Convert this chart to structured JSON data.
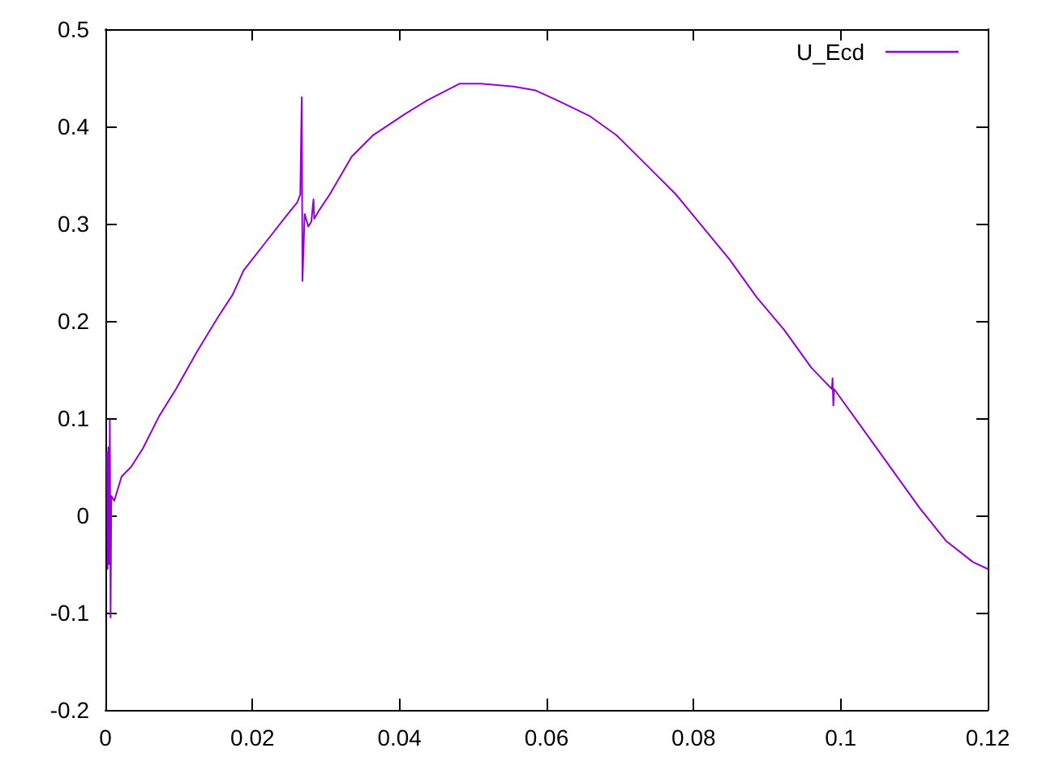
{
  "chart_data": {
    "type": "line",
    "x": [
      0.0002,
      0.0003,
      0.0004,
      0.0005,
      0.0006,
      0.0007,
      0.0008,
      0.0012,
      0.0022,
      0.0035,
      0.0051,
      0.0073,
      0.0096,
      0.0125,
      0.0154,
      0.0173,
      0.0188,
      0.0217,
      0.0246,
      0.0261,
      0.0265,
      0.0267,
      0.0268,
      0.0271,
      0.0276,
      0.028,
      0.0283,
      0.0284,
      0.029,
      0.0305,
      0.0335,
      0.0364,
      0.0408,
      0.0438,
      0.0482,
      0.0511,
      0.0555,
      0.0585,
      0.0614,
      0.0658,
      0.0695,
      0.0739,
      0.0776,
      0.0812,
      0.0849,
      0.0886,
      0.0923,
      0.096,
      0.0988,
      0.0989,
      0.099,
      0.0991,
      0.1033,
      0.107,
      0.1107,
      0.1143,
      0.118,
      0.12
    ],
    "series": [
      {
        "name": "U_Ecd",
        "color": "#9400d3",
        "values": [
          0.065,
          -0.055,
          0.07,
          -0.05,
          0.098,
          -0.105,
          0.02,
          0.015,
          0.04,
          0.05,
          0.069,
          0.102,
          0.13,
          0.169,
          0.205,
          0.227,
          0.252,
          0.28,
          0.308,
          0.322,
          0.33,
          0.43,
          0.241,
          0.31,
          0.297,
          0.302,
          0.325,
          0.305,
          0.313,
          0.33,
          0.369,
          0.391,
          0.413,
          0.427,
          0.444,
          0.444,
          0.441,
          0.437,
          0.427,
          0.411,
          0.391,
          0.358,
          0.33,
          0.297,
          0.263,
          0.224,
          0.191,
          0.152,
          0.13,
          0.141,
          0.113,
          0.13,
          0.086,
          0.047,
          0.008,
          -0.026,
          -0.048,
          -0.055
        ]
      }
    ],
    "xlim": [
      0,
      0.12
    ],
    "xticks": [
      0,
      0.02,
      0.04,
      0.06,
      0.08,
      0.1,
      0.12
    ],
    "ylim": [
      -0.2,
      0.5
    ],
    "yticks": [
      -0.2,
      -0.1,
      0,
      0.1,
      0.2,
      0.3,
      0.4,
      0.5
    ],
    "legend": "top right"
  }
}
